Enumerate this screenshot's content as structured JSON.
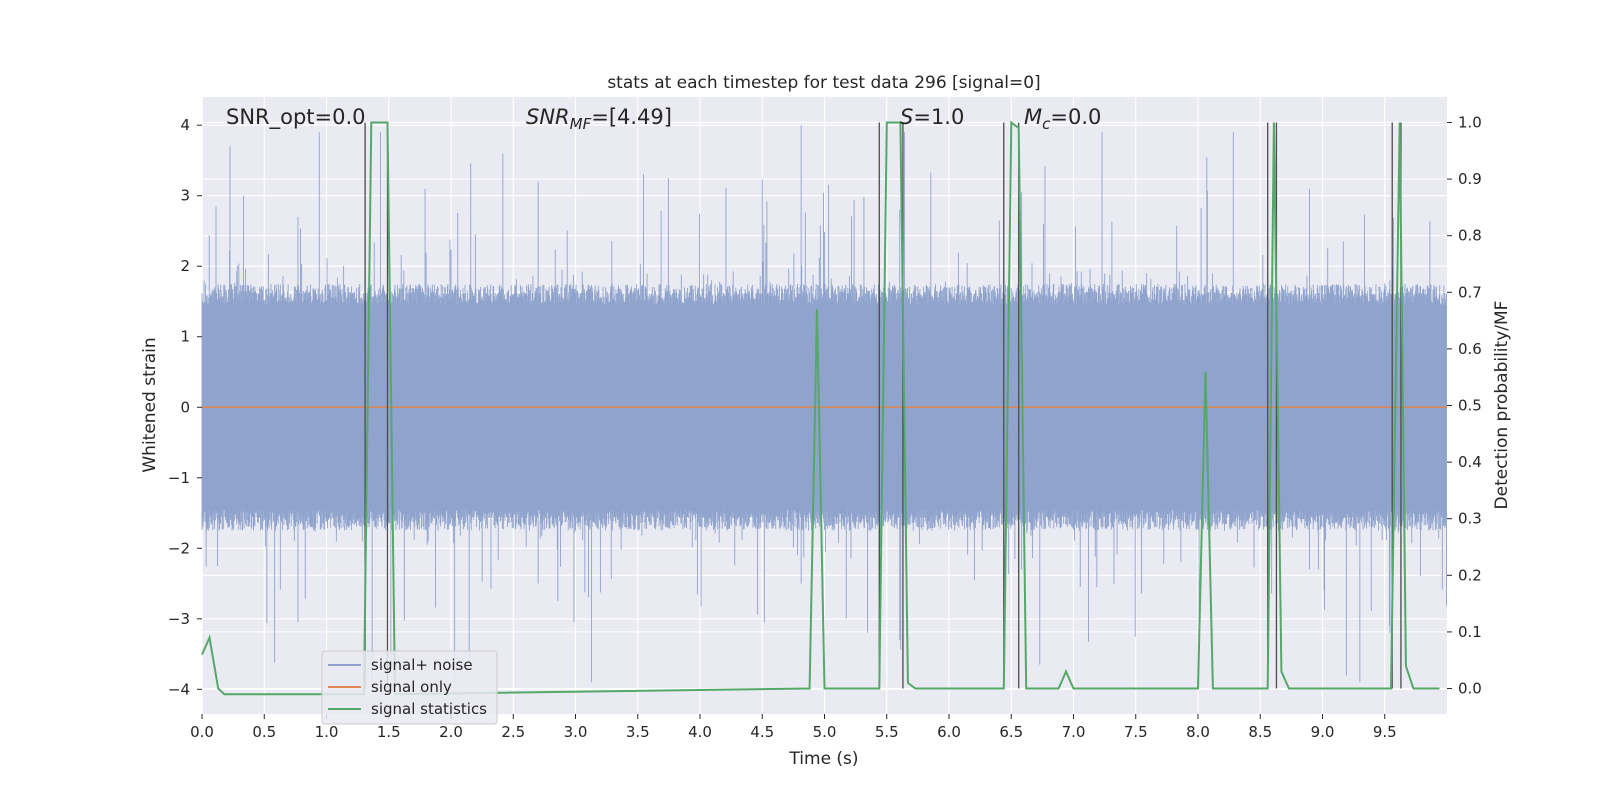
{
  "chart_data": {
    "type": "line",
    "title": "stats at each timestep for test data 296 [signal=0]",
    "xlabel": "Time (s)",
    "ylabel": "Whitened strain",
    "y2label": "Detection probability/MF",
    "xlim": [
      0,
      10
    ],
    "ylim": [
      -4.35,
      4.4
    ],
    "y2lim": [
      -0.045,
      1.045
    ],
    "grid": true,
    "legend_position": "lower-left",
    "x_ticks": [
      "0.0",
      "0.5",
      "1.0",
      "1.5",
      "2.0",
      "2.5",
      "3.0",
      "3.5",
      "4.0",
      "4.5",
      "5.0",
      "5.5",
      "6.0",
      "6.5",
      "7.0",
      "7.5",
      "8.0",
      "8.5",
      "9.0",
      "9.5"
    ],
    "y_ticks": [
      "4",
      "3",
      "2",
      "1",
      "0",
      "−1",
      "−2",
      "−3",
      "−4"
    ],
    "y2_ticks": [
      "1.0",
      "0.9",
      "0.8",
      "0.7",
      "0.6",
      "0.5",
      "0.4",
      "0.3",
      "0.2",
      "0.1",
      "0.0"
    ],
    "annotations": {
      "snr_opt": "SNR_opt=0.0",
      "snr_mf_base": "SNR",
      "snr_mf_sub": "MF",
      "snr_mf_value": "=[4.49]",
      "s_var": "S",
      "s_value": "=1.0",
      "mc_var": "M",
      "mc_sub": "c",
      "mc_value": "=0.0"
    },
    "series": [
      {
        "name": "signal+ noise",
        "color": "#8fa3cd",
        "axis": "left",
        "description_values": "whitened noisy strain, roughly within [-2, 2] with spikes up to about ±4"
      },
      {
        "name": "signal only",
        "color": "#dd8452",
        "axis": "left",
        "x": [
          0,
          10
        ],
        "y": [
          0,
          0
        ]
      },
      {
        "name": "signal statistics",
        "color": "#55a868",
        "axis": "right",
        "x": [
          0,
          0.06,
          0.13,
          0.18,
          1.3,
          1.36,
          1.49,
          1.55,
          4.88,
          4.94,
          5.0,
          5.44,
          5.5,
          5.61,
          5.67,
          5.73,
          6.44,
          6.5,
          6.56,
          6.62,
          6.88,
          6.94,
          7.0,
          8.0,
          8.06,
          8.12,
          8.56,
          8.61,
          8.67,
          8.73,
          9.55,
          9.62,
          9.67,
          9.73,
          9.94
        ],
        "y": [
          0.06,
          0.09,
          0.0,
          -0.01,
          -0.01,
          1.0,
          1.0,
          -0.01,
          0.0,
          0.67,
          0.0,
          0.0,
          1.0,
          1.0,
          0.01,
          0.0,
          0.0,
          1.0,
          0.99,
          0.0,
          0.0,
          0.03,
          0.0,
          0.0,
          0.56,
          0.0,
          0.0,
          1.0,
          0.03,
          0.0,
          0.0,
          1.0,
          0.04,
          0.0,
          0.0
        ]
      }
    ],
    "vertical_markers": [
      1.31,
      1.49,
      5.44,
      5.63,
      6.44,
      6.56,
      8.56,
      8.63,
      9.56,
      9.63
    ]
  },
  "legend": {
    "items": [
      {
        "label": "signal+ noise",
        "color": "#8fa3cd"
      },
      {
        "label": "signal only",
        "color": "#dd8452"
      },
      {
        "label": "signal statistics",
        "color": "#55a868"
      }
    ]
  },
  "colors": {
    "plot_bg": "#eaeaf2",
    "grid": "#ffffff",
    "marker_line": "#4c4c4c"
  }
}
